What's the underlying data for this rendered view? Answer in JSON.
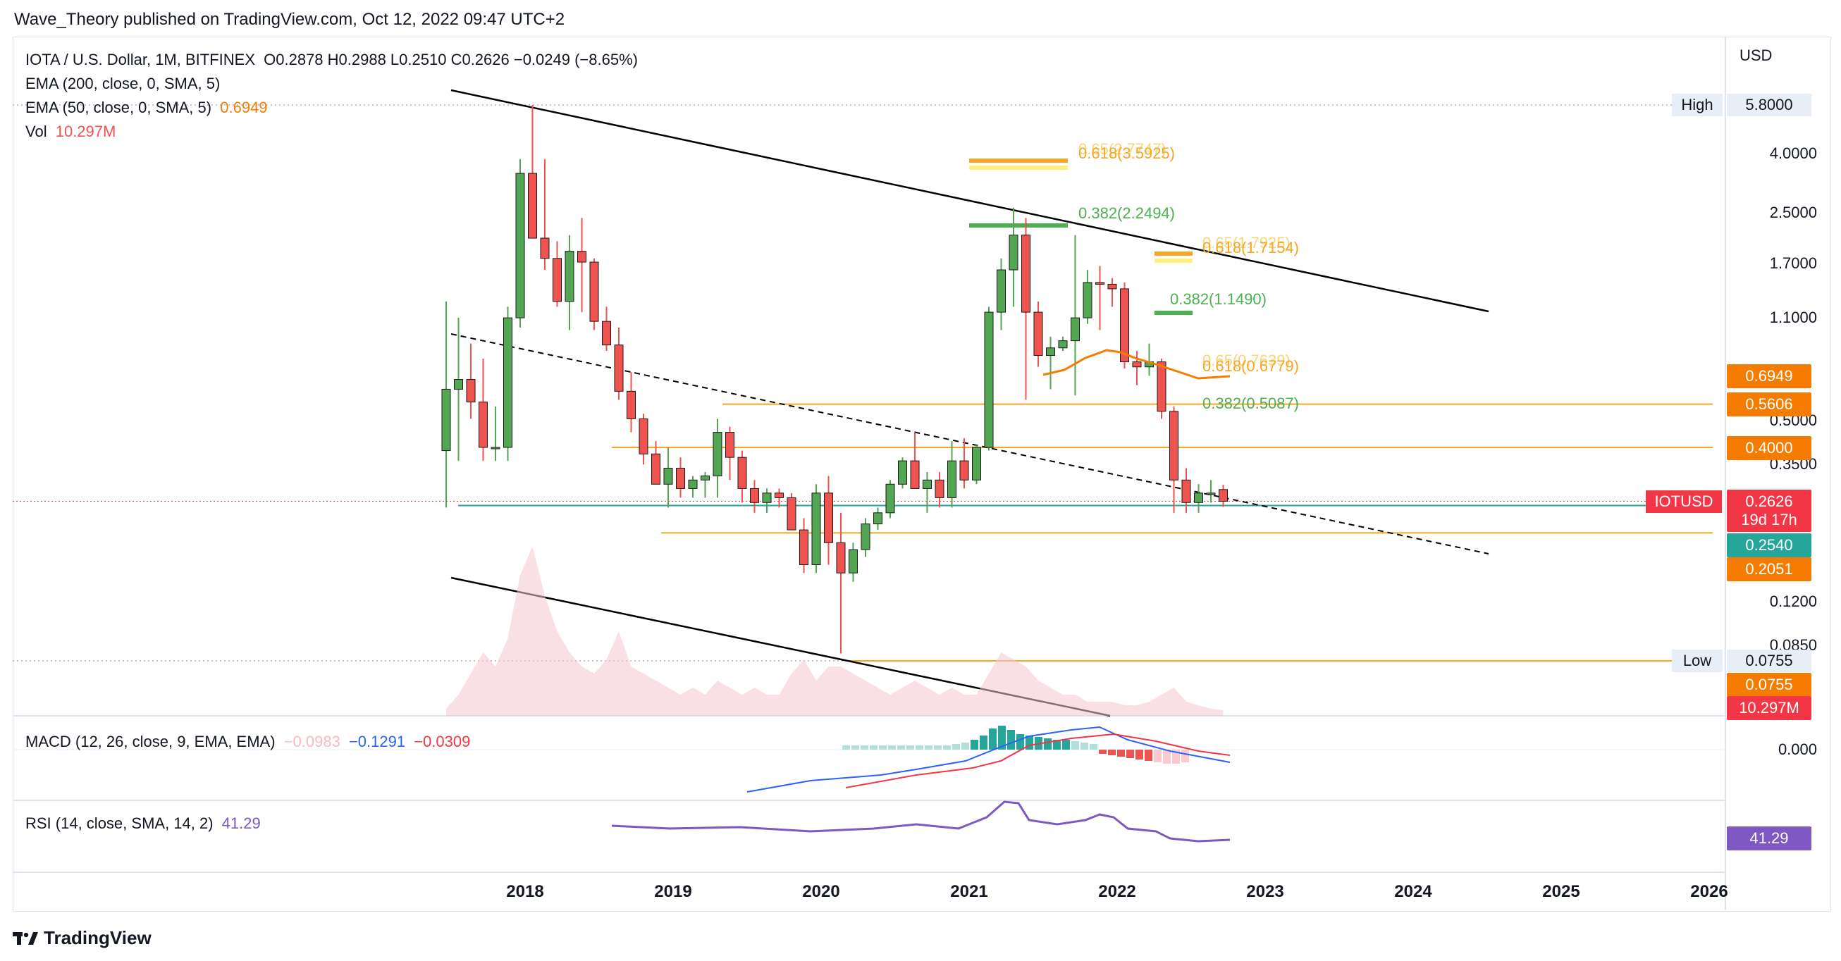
{
  "header": {
    "published": "Wave_Theory published on TradingView.com, Oct 12, 2022 09:47 UTC+2"
  },
  "legend": {
    "symbol": "IOTA / U.S. Dollar, 1M, BITFINEX",
    "ohlc": "O0.2878  H0.2988  L0.2510  C0.2626  −0.0249 (−8.65%)",
    "ema200": "EMA (200, close, 0, SMA, 5)",
    "ema50": "EMA (50, close, 0, SMA, 5)",
    "ema50_value": "0.6949",
    "vol": "Vol",
    "vol_value": "10.297M",
    "macd": "MACD (12, 26, close, 9, EMA, EMA)",
    "macd_hist": "−0.0983",
    "macd_line": "−0.1291",
    "macd_signal": "−0.0309",
    "rsi": "RSI (14, close, SMA, 14, 2)",
    "rsi_value": "41.29"
  },
  "price_axis": {
    "unit": "USD",
    "ticks": [
      "5.8000",
      "4.0000",
      "2.5000",
      "1.7000",
      "1.1000",
      "0.6949",
      "0.5606",
      "0.5000",
      "0.4000",
      "0.3500",
      "0.2626",
      "0.2540",
      "0.2051",
      "0.1200",
      "0.0850",
      "0.0755",
      "0.0755"
    ],
    "high_label": "High",
    "high_value": "5.8000",
    "low_label": "Low",
    "low_value": "0.0755",
    "symbol_tag": "IOTUSD",
    "last_price": "0.2626",
    "countdown": "19d 17h",
    "vol_tag": "10.297M",
    "macd_zero": "0.000",
    "rsi_tag": "41.29"
  },
  "fib_labels": [
    {
      "text": "0.65(2.7747)",
      "faded": true
    },
    {
      "text": "0.618(3.5925)"
    },
    {
      "text": "0.382(2.2494)"
    },
    {
      "text": "0.65(1.7925)",
      "faded": true
    },
    {
      "text": "0.618(1.7154)"
    },
    {
      "text": "0.382(1.1490)"
    },
    {
      "text": "0.65(0.7639)",
      "faded": true
    },
    {
      "text": "0.618(0.6779)"
    },
    {
      "text": "0.382(0.5087)"
    }
  ],
  "time_axis": [
    "2018",
    "2019",
    "2020",
    "2021",
    "2022",
    "2023",
    "2024",
    "2025",
    "2026"
  ],
  "footer": {
    "brand": "TradingView"
  },
  "colors": {
    "up": "#26a69a",
    "candle_up": "#53a653",
    "down": "#ef5350",
    "fib_orange": "#f5a623",
    "fib_green": "#4caf50",
    "ema50": "#f57c00",
    "macd_line": "#2962ff",
    "signal": "#f23645",
    "rsi": "#7e57c2"
  },
  "chart_data": {
    "type": "candlestick",
    "scale": "log",
    "x_labels": [
      "2018",
      "2019",
      "2020",
      "2021",
      "2022",
      "2023",
      "2024",
      "2025",
      "2026"
    ],
    "series": [
      {
        "name": "IOTUSD",
        "ohlc_monthly": [
          [
            0.39,
            1.25,
            0.25,
            0.63
          ],
          [
            0.63,
            1.1,
            0.36,
            0.68
          ],
          [
            0.68,
            0.9,
            0.5,
            0.57
          ],
          [
            0.57,
            0.8,
            0.36,
            0.4
          ],
          [
            0.4,
            0.55,
            0.36,
            0.4
          ],
          [
            0.4,
            1.2,
            0.36,
            1.1
          ],
          [
            1.1,
            3.8,
            1.02,
            3.4
          ],
          [
            3.4,
            5.8,
            2.1,
            2.05
          ],
          [
            2.05,
            3.8,
            1.6,
            1.75
          ],
          [
            1.75,
            2.0,
            1.2,
            1.25
          ],
          [
            1.25,
            2.1,
            1.0,
            1.85
          ],
          [
            1.85,
            2.4,
            1.15,
            1.7
          ],
          [
            1.7,
            1.75,
            1.0,
            1.07
          ],
          [
            1.07,
            1.2,
            0.85,
            0.89
          ],
          [
            0.89,
            1.02,
            0.58,
            0.62
          ],
          [
            0.62,
            0.72,
            0.45,
            0.5
          ],
          [
            0.5,
            0.52,
            0.35,
            0.38
          ],
          [
            0.38,
            0.42,
            0.3,
            0.3
          ],
          [
            0.3,
            0.4,
            0.25,
            0.34
          ],
          [
            0.34,
            0.37,
            0.27,
            0.29
          ],
          [
            0.29,
            0.32,
            0.27,
            0.31
          ],
          [
            0.31,
            0.33,
            0.27,
            0.32
          ],
          [
            0.32,
            0.5,
            0.27,
            0.45
          ],
          [
            0.45,
            0.47,
            0.31,
            0.37
          ],
          [
            0.37,
            0.39,
            0.26,
            0.29
          ],
          [
            0.29,
            0.31,
            0.24,
            0.26
          ],
          [
            0.26,
            0.29,
            0.24,
            0.28
          ],
          [
            0.28,
            0.29,
            0.25,
            0.27
          ],
          [
            0.27,
            0.28,
            0.22,
            0.21
          ],
          [
            0.21,
            0.23,
            0.15,
            0.16
          ],
          [
            0.16,
            0.3,
            0.15,
            0.28
          ],
          [
            0.28,
            0.32,
            0.16,
            0.19
          ],
          [
            0.19,
            0.24,
            0.08,
            0.15
          ],
          [
            0.15,
            0.19,
            0.14,
            0.18
          ],
          [
            0.18,
            0.23,
            0.17,
            0.22
          ],
          [
            0.22,
            0.25,
            0.21,
            0.24
          ],
          [
            0.24,
            0.31,
            0.23,
            0.3
          ],
          [
            0.3,
            0.37,
            0.29,
            0.36
          ],
          [
            0.36,
            0.45,
            0.33,
            0.29
          ],
          [
            0.29,
            0.33,
            0.24,
            0.31
          ],
          [
            0.31,
            0.33,
            0.25,
            0.27
          ],
          [
            0.27,
            0.42,
            0.25,
            0.36
          ],
          [
            0.36,
            0.43,
            0.29,
            0.31
          ],
          [
            0.31,
            0.41,
            0.3,
            0.4
          ],
          [
            0.4,
            1.2,
            0.39,
            1.15
          ],
          [
            1.15,
            1.75,
            1.0,
            1.6
          ],
          [
            1.6,
            2.6,
            1.2,
            2.1
          ],
          [
            2.1,
            2.4,
            0.58,
            1.15
          ],
          [
            1.15,
            1.25,
            0.75,
            0.82
          ],
          [
            0.82,
            0.95,
            0.63,
            0.87
          ],
          [
            0.87,
            0.95,
            0.85,
            0.92
          ],
          [
            0.92,
            2.1,
            0.6,
            1.1
          ],
          [
            1.1,
            1.6,
            1.05,
            1.45
          ],
          [
            1.45,
            1.65,
            1.0,
            1.43
          ],
          [
            1.43,
            1.5,
            1.2,
            1.38
          ],
          [
            1.38,
            1.45,
            0.74,
            0.78
          ],
          [
            0.78,
            0.85,
            0.65,
            0.75
          ],
          [
            0.75,
            0.9,
            0.7,
            0.78
          ],
          [
            0.78,
            0.8,
            0.5,
            0.53
          ],
          [
            0.53,
            0.55,
            0.24,
            0.31
          ],
          [
            0.31,
            0.34,
            0.24,
            0.26
          ],
          [
            0.26,
            0.3,
            0.24,
            0.28
          ],
          [
            0.28,
            0.31,
            0.26,
            0.28
          ],
          [
            0.2878,
            0.2988,
            0.251,
            0.2626
          ]
        ]
      }
    ],
    "ylim": [
      0.0755,
      5.8
    ],
    "horizontal_levels": [
      0.5606,
      0.4,
      0.254,
      0.2051,
      0.0755
    ],
    "ema50_last": 0.6949,
    "rsi_last": 41.29,
    "macd": {
      "hist": -0.0983,
      "macd": -0.1291,
      "signal": -0.0309
    }
  }
}
